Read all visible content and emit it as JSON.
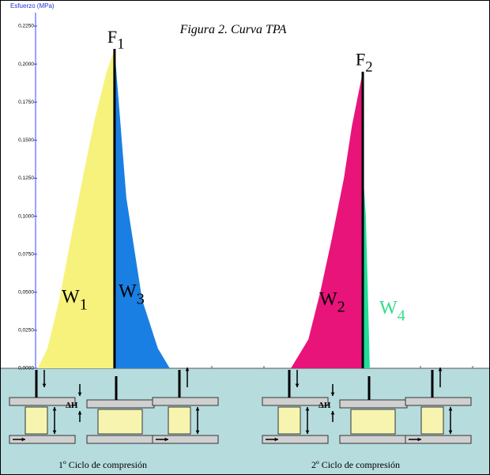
{
  "chart_data": {
    "type": "area",
    "title": "Figura 2. Curva TPA",
    "ylabel": "Esfuerzo (MPa)",
    "ylim": [
      0,
      0.225
    ],
    "yticks": [
      {
        "value": 0,
        "label": "0,0000"
      },
      {
        "value": 0.025,
        "label": "0,0250"
      },
      {
        "value": 0.05,
        "label": "0,0500"
      },
      {
        "value": 0.075,
        "label": "0,0750"
      },
      {
        "value": 0.1,
        "label": "0,1000"
      },
      {
        "value": 0.125,
        "label": "0,1250"
      },
      {
        "value": 0.15,
        "label": "0,1500"
      },
      {
        "value": 0.175,
        "label": "0,1750"
      },
      {
        "value": 0.2,
        "label": "0,2000"
      },
      {
        "value": 0.225,
        "label": "0,2250"
      }
    ],
    "xlim": [
      0,
      100
    ],
    "series": [
      {
        "label": {
          "text": "W",
          "sub": "1"
        },
        "color": "#f7f27c",
        "x": [
          0.5,
          2.7,
          5.4,
          8.1,
          10.8,
          13.5,
          16.2,
          18
        ],
        "values": [
          0,
          0.013,
          0.045,
          0.086,
          0.126,
          0.164,
          0.195,
          0.21
        ]
      },
      {
        "label": {
          "text": "W",
          "sub": "3"
        },
        "color": "#1a7fe2",
        "x": [
          18,
          20.7,
          24.3,
          27.9,
          30.6
        ],
        "values": [
          0.21,
          0.112,
          0.045,
          0.013,
          0
        ]
      },
      {
        "label": {
          "text": "W",
          "sub": "2"
        },
        "color": "#e8147a",
        "x": [
          58.2,
          62.2,
          64.9,
          67.6,
          70.3,
          72.1,
          74.6
        ],
        "values": [
          0,
          0.019,
          0.05,
          0.086,
          0.125,
          0.159,
          0.195
        ]
      },
      {
        "label": {
          "text": "W",
          "sub": "4"
        },
        "color": "#22dd99",
        "x": [
          74.6,
          75.3,
          76.2
        ],
        "values": [
          0.13,
          0.1,
          0
        ]
      }
    ],
    "annotations": [
      {
        "text": "F",
        "sub": "1"
      },
      {
        "text": "F",
        "sub": "2"
      }
    ],
    "delta_h": "ΔH",
    "captions": [
      "1º Ciclo de compresión",
      "2º Ciclo de compresión"
    ]
  }
}
